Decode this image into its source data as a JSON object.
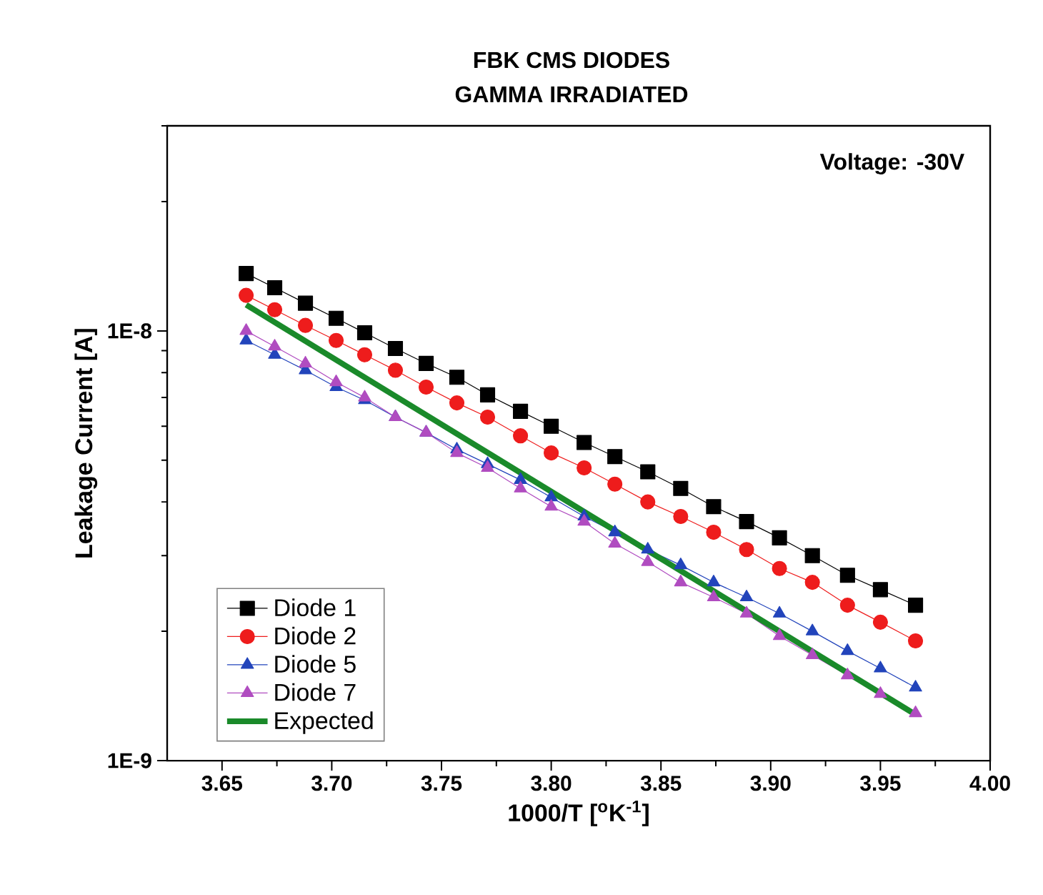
{
  "chart_data": {
    "type": "line",
    "title": "FBK CMS DIODES",
    "subtitle": "GAMMA IRRADIATED",
    "xlabel": "1000/T [$^{o}$K$^{-1}$]",
    "ylabel": "Leakage Current [A]",
    "annotations": [
      "Voltage: -30V"
    ],
    "x": [
      3.661,
      3.674,
      3.688,
      3.702,
      3.715,
      3.729,
      3.743,
      3.757,
      3.771,
      3.786,
      3.8,
      3.815,
      3.829,
      3.844,
      3.859,
      3.874,
      3.889,
      3.904,
      3.919,
      3.935,
      3.95,
      3.966
    ],
    "series": [
      {
        "name": "Diode 1",
        "color": "#000000",
        "marker": "square",
        "values": [
          1.36e-08,
          1.26e-08,
          1.16e-08,
          1.07e-08,
          9.9e-09,
          9.1e-09,
          8.4e-09,
          7.8e-09,
          7.1e-09,
          6.5e-09,
          6e-09,
          5.5e-09,
          5.1e-09,
          4.7e-09,
          4.3e-09,
          3.9e-09,
          3.6e-09,
          3.3e-09,
          3e-09,
          2.7e-09,
          2.5e-09,
          2.3e-09
        ]
      },
      {
        "name": "Diode 2",
        "color": "#ee1c1c",
        "marker": "circle",
        "values": [
          1.21e-08,
          1.12e-08,
          1.03e-08,
          9.5e-09,
          8.8e-09,
          8.1e-09,
          7.4e-09,
          6.8e-09,
          6.3e-09,
          5.7e-09,
          5.2e-09,
          4.8e-09,
          4.4e-09,
          4e-09,
          3.7e-09,
          3.4e-09,
          3.1e-09,
          2.8e-09,
          2.6e-09,
          2.3e-09,
          2.1e-09,
          1.9e-09
        ]
      },
      {
        "name": "Diode 5",
        "color": "#2244bb",
        "marker": "triangle",
        "values": [
          9.5e-09,
          8.8e-09,
          8.1e-09,
          7.4e-09,
          6.9e-09,
          6.3e-09,
          5.8e-09,
          5.3e-09,
          4.9e-09,
          4.5e-09,
          4.1e-09,
          3.7e-09,
          3.4e-09,
          3.1e-09,
          2.85e-09,
          2.6e-09,
          2.4e-09,
          2.2e-09,
          2e-09,
          1.8e-09,
          1.64e-09,
          1.48e-09
        ]
      },
      {
        "name": "Diode 7",
        "color": "#b04cc0",
        "marker": "triangle-down",
        "values": [
          1e-08,
          9.2e-09,
          8.4e-09,
          7.6e-09,
          7e-09,
          6.3e-09,
          5.8e-09,
          5.2e-09,
          4.8e-09,
          4.3e-09,
          3.9e-09,
          3.6e-09,
          3.2e-09,
          2.9e-09,
          2.6e-09,
          2.4e-09,
          2.2e-09,
          1.95e-09,
          1.76e-09,
          1.58e-09,
          1.43e-09,
          1.29e-09
        ]
      },
      {
        "name": "Expected",
        "color": "#1a8a2a",
        "marker": "none",
        "x": [
          3.661,
          3.966
        ],
        "values": [
          1.15e-08,
          1.28e-09
        ]
      }
    ],
    "xlim": [
      3.625,
      4.0
    ],
    "ylim": [
      1e-09,
      3e-08
    ],
    "log": "y",
    "xticks": [
      {
        "value": 3.65,
        "label": "3.65"
      },
      {
        "value": 3.7,
        "label": "3.70"
      },
      {
        "value": 3.75,
        "label": "3.75"
      },
      {
        "value": 3.8,
        "label": "3.80"
      },
      {
        "value": 3.85,
        "label": "3.85"
      },
      {
        "value": 3.9,
        "label": "3.90"
      },
      {
        "value": 3.95,
        "label": "3.95"
      },
      {
        "value": 4.0,
        "label": "4.00"
      }
    ],
    "yticks": [
      {
        "value": 1e-09,
        "label": "1E-9"
      },
      {
        "value": 2e-09,
        "label": null
      },
      {
        "value": 3e-09,
        "label": null
      },
      {
        "value": 4e-09,
        "label": null
      },
      {
        "value": 5e-09,
        "label": null
      },
      {
        "value": 6e-09,
        "label": null
      },
      {
        "value": 7e-09,
        "label": null
      },
      {
        "value": 8e-09,
        "label": null
      },
      {
        "value": 9e-09,
        "label": null
      },
      {
        "value": 1e-08,
        "label": "1E-8"
      },
      {
        "value": 2e-08,
        "label": null
      },
      {
        "value": 3e-08,
        "label": null
      }
    ],
    "grid": false,
    "legend": "bottom left"
  }
}
